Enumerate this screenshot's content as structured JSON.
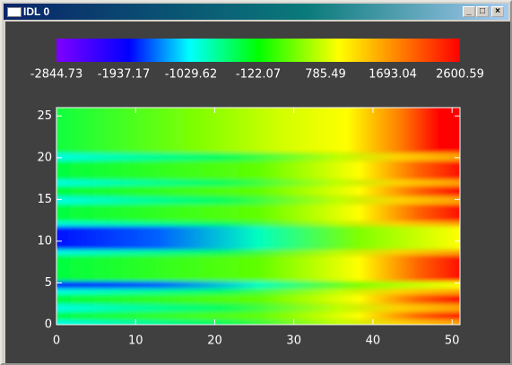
{
  "window": {
    "title": "IDL 0"
  },
  "chart_data": {
    "type": "heatmap",
    "colorbar": {
      "lim": [
        -2844.73,
        2600.59
      ],
      "ticks": [
        -2844.73,
        -1937.17,
        -1029.62,
        -122.07,
        785.49,
        1693.04,
        2600.59
      ]
    },
    "xlim": [
      0,
      51
    ],
    "xticks": [
      0,
      10,
      20,
      30,
      40,
      50
    ],
    "ylim": [
      0,
      26
    ],
    "yticks": [
      0,
      5,
      10,
      15,
      20,
      25
    ]
  }
}
